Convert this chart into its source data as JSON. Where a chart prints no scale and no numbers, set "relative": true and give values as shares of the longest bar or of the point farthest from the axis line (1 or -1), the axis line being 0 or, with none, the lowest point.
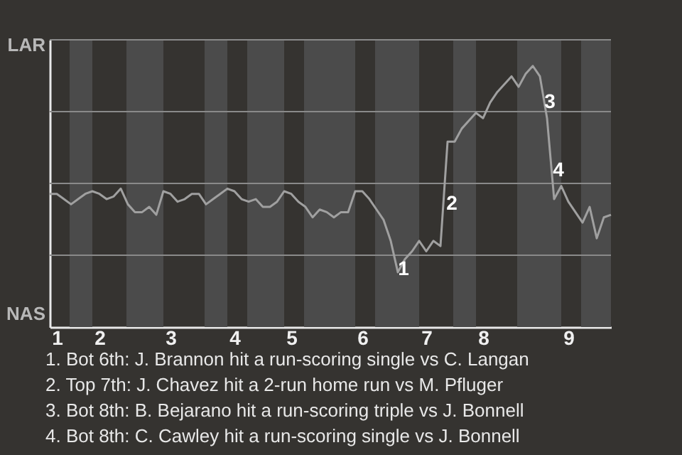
{
  "chart_data": {
    "type": "line",
    "relative": true,
    "categories": [
      null,
      "1",
      null,
      null,
      null,
      null,
      null,
      "2",
      null,
      null,
      null,
      null,
      null,
      null,
      null,
      null,
      null,
      "3",
      null,
      null,
      null,
      null,
      null,
      null,
      null,
      null,
      "4",
      null,
      null,
      null,
      null,
      null,
      null,
      null,
      "5",
      null,
      null,
      null,
      null,
      null,
      null,
      null,
      null,
      null,
      "6",
      null,
      null,
      null,
      null,
      null,
      null,
      null,
      null,
      "7",
      null,
      null,
      null,
      null,
      null,
      null,
      null,
      "8",
      null,
      null,
      null,
      null,
      null,
      null,
      null,
      null,
      null,
      null,
      null,
      "9",
      null,
      null,
      null,
      null,
      null,
      null
    ],
    "series": [
      {
        "color": "#a0a0a0",
        "values": [
          0.51,
          0.51,
          0.49,
          0.47,
          0.49,
          0.51,
          0.52,
          0.51,
          0.49,
          0.5,
          0.53,
          0.47,
          0.44,
          0.44,
          0.46,
          0.43,
          0.52,
          0.51,
          0.48,
          0.49,
          0.51,
          0.51,
          0.47,
          0.49,
          0.51,
          0.53,
          0.52,
          0.49,
          0.48,
          0.49,
          0.46,
          0.46,
          0.48,
          0.52,
          0.51,
          0.48,
          0.46,
          0.42,
          0.45,
          0.44,
          0.42,
          0.44,
          0.44,
          0.52,
          0.52,
          0.49,
          0.45,
          0.41,
          0.33,
          0.21,
          0.26,
          0.29,
          0.33,
          0.29,
          0.33,
          0.31,
          0.71,
          0.71,
          0.76,
          0.79,
          0.82,
          0.8,
          0.86,
          0.9,
          0.93,
          0.96,
          0.92,
          0.97,
          1,
          0.96,
          0.8,
          0.49,
          0.54,
          0.48,
          0.44,
          0.4,
          0.46,
          0.34,
          0.42,
          0.43
        ]
      }
    ],
    "grid": "y",
    "line_style": "solid",
    "marker": "none",
    "annotations": [
      "1",
      "2",
      "3",
      "4",
      "LAR",
      "NAS",
      "1. Bot 6th: J. Brannon hit a run-scoring single vs C. Langan",
      "2. Top 7th: J. Chavez hit a 2-run home run vs M. Pfluger",
      "3. Bot 8th: B. Bejarano hit a run-scoring triple vs J. Bonnell",
      "4. Bot 8th: C. Cawley hit a run-scoring single vs J. Bonnell"
    ]
  }
}
